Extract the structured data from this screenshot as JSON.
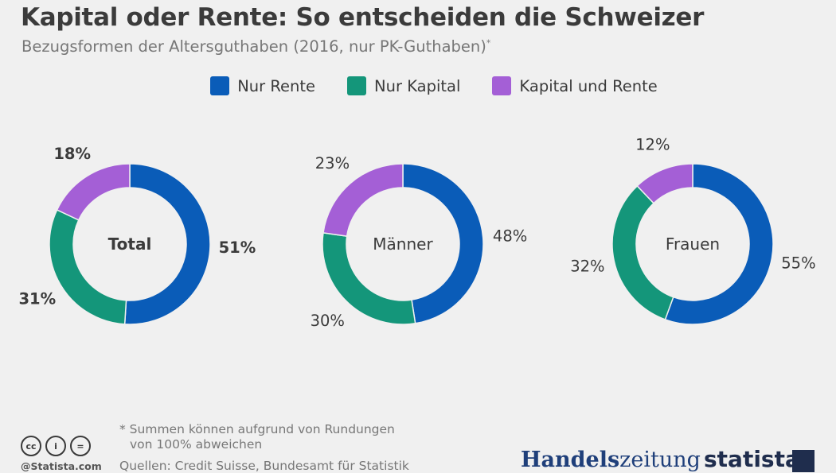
{
  "header": {
    "title": "Kapital oder Rente: So entscheiden die Schweizer",
    "subtitle": "Bezugsformen der Altersguthaben (2016, nur PK-Guthaben)",
    "subtitle_mark": "*"
  },
  "colors": {
    "nur_rente": "#0a5cb8",
    "nur_kapital": "#14967a",
    "kapital_und_rente": "#a45fd6"
  },
  "legend": [
    {
      "label": "Nur Rente",
      "color": "#0a5cb8"
    },
    {
      "label": "Nur Kapital",
      "color": "#14967a"
    },
    {
      "label": "Kapital und Rente",
      "color": "#a45fd6"
    }
  ],
  "chart_data": [
    {
      "type": "pie",
      "title": "Total",
      "title_bold": true,
      "categories": [
        "Nur Rente",
        "Nur Kapital",
        "Kapital und Rente"
      ],
      "values": [
        51,
        31,
        18
      ],
      "labels": [
        "51%",
        "31%",
        "18%"
      ],
      "unit": "%"
    },
    {
      "type": "pie",
      "title": "Männer",
      "title_bold": false,
      "categories": [
        "Nur Rente",
        "Nur Kapital",
        "Kapital und Rente"
      ],
      "values": [
        48,
        30,
        23
      ],
      "labels": [
        "48%",
        "30%",
        "23%"
      ],
      "unit": "%"
    },
    {
      "type": "pie",
      "title": "Frauen",
      "title_bold": false,
      "categories": [
        "Nur Rente",
        "Nur Kapital",
        "Kapital und Rente"
      ],
      "values": [
        55,
        32,
        12
      ],
      "labels": [
        "55%",
        "32%",
        "12%"
      ],
      "unit": "%"
    }
  ],
  "footer": {
    "note_line1": "* Summen können aufgrund von Rundungen",
    "note_line2": "von 100% abweichen",
    "sources": "Quellen: Credit Suisse, Bundesamt für Statistik",
    "copyright": "@Statista.com",
    "cc_icons": [
      "cc-icon",
      "by-icon",
      "nd-icon"
    ],
    "cc_glyphs": [
      "cc",
      "i",
      "="
    ],
    "brand_handelszeitung_bold": "Handels",
    "brand_handelszeitung_thin": "zeitung",
    "brand_statista": "statista"
  }
}
